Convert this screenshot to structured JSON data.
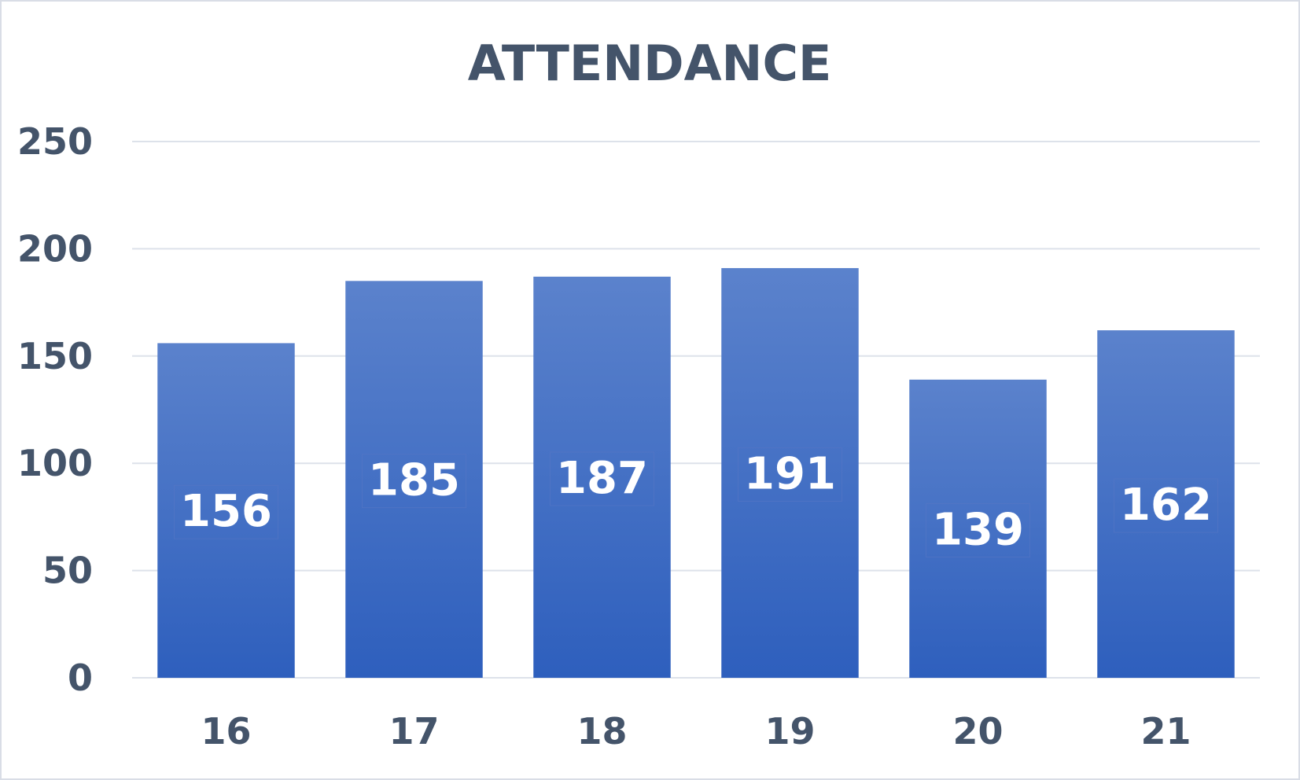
{
  "chart_data": {
    "type": "bar",
    "title": "ATTENDANCE",
    "categories": [
      "16",
      "17",
      "18",
      "19",
      "20",
      "21"
    ],
    "values": [
      156,
      185,
      187,
      191,
      139,
      162
    ],
    "xlabel": "",
    "ylabel": "",
    "ylim": [
      0,
      250
    ],
    "yticks": [
      0,
      50,
      100,
      150,
      200,
      250
    ],
    "grid": true,
    "data_labels": true,
    "legend": "none",
    "colors": {
      "bar_top": "#5b82cc",
      "bar_bottom": "#2e5fbd",
      "text": "#44546a",
      "gridline": "#dde2ea"
    }
  }
}
